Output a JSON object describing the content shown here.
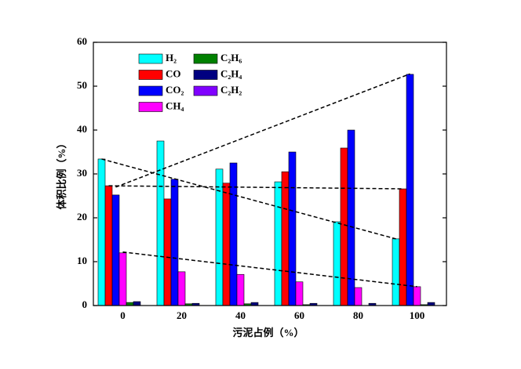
{
  "chart_data": {
    "type": "bar",
    "x_label": "污泥占例（%）",
    "y_label": "体积比例（%）",
    "categories": [
      "0",
      "20",
      "40",
      "60",
      "80",
      "100"
    ],
    "ylim": [
      0,
      60
    ],
    "yticks": [
      0,
      10,
      20,
      30,
      40,
      50,
      60
    ],
    "series": [
      {
        "name": "H₂",
        "color": "#00ffff",
        "values": [
          33.4,
          37.5,
          31.1,
          28.2,
          19.1,
          15.2
        ]
      },
      {
        "name": "CO",
        "color": "#ff0000",
        "values": [
          27.3,
          24.3,
          27.9,
          30.5,
          35.9,
          26.6
        ]
      },
      {
        "name": "CO₂",
        "color": "#0000ff",
        "values": [
          25.2,
          28.8,
          32.5,
          35.0,
          40.0,
          52.7
        ]
      },
      {
        "name": "CH₄",
        "color": "#ff00ff",
        "values": [
          12.0,
          7.7,
          7.1,
          5.4,
          4.1,
          4.3
        ]
      },
      {
        "name": "C₂H₆",
        "color": "#008000",
        "values": [
          0.7,
          0.4,
          0.4,
          0.2,
          0,
          0.2
        ]
      },
      {
        "name": "C₂H₄",
        "color": "#000080",
        "values": [
          0.9,
          0.5,
          0.7,
          0.5,
          0.5,
          0.7
        ]
      },
      {
        "name": "C₂H₂",
        "color": "#8000ff",
        "values": [
          0,
          0,
          0,
          0,
          0,
          0
        ]
      }
    ],
    "trend_lines": [
      {
        "values": [
          33.4,
          15.2
        ]
      },
      {
        "values": [
          27.3,
          26.6
        ]
      },
      {
        "values": [
          27.0,
          52.8
        ]
      },
      {
        "values": [
          12.2,
          4.3
        ]
      }
    ]
  }
}
